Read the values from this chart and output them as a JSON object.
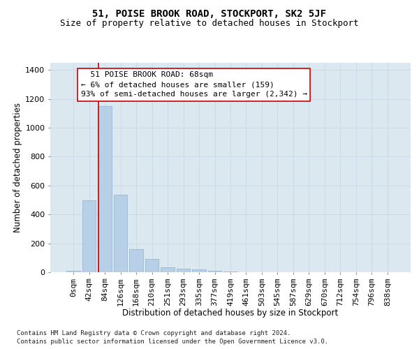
{
  "title": "51, POISE BROOK ROAD, STOCKPORT, SK2 5JF",
  "subtitle": "Size of property relative to detached houses in Stockport",
  "xlabel": "Distribution of detached houses by size in Stockport",
  "ylabel": "Number of detached properties",
  "footnote1": "Contains HM Land Registry data © Crown copyright and database right 2024.",
  "footnote2": "Contains public sector information licensed under the Open Government Licence v3.0.",
  "bar_labels": [
    "0sqm",
    "42sqm",
    "84sqm",
    "126sqm",
    "168sqm",
    "210sqm",
    "251sqm",
    "293sqm",
    "335sqm",
    "377sqm",
    "419sqm",
    "461sqm",
    "503sqm",
    "545sqm",
    "587sqm",
    "629sqm",
    "670sqm",
    "712sqm",
    "754sqm",
    "796sqm",
    "838sqm"
  ],
  "bar_values": [
    10,
    500,
    1150,
    535,
    160,
    90,
    35,
    25,
    20,
    10,
    5,
    0,
    0,
    0,
    0,
    0,
    0,
    0,
    0,
    0,
    0
  ],
  "bar_color": "#b8cfe8",
  "bar_edgecolor": "#8ab0d0",
  "red_line_x": 1.62,
  "red_line_color": "#cc0000",
  "annotation_text": "  51 POISE BROOK ROAD: 68sqm\n← 6% of detached houses are smaller (159)\n93% of semi-detached houses are larger (2,342) →",
  "ylim": [
    0,
    1450
  ],
  "yticks": [
    0,
    200,
    400,
    600,
    800,
    1000,
    1200,
    1400
  ],
  "grid_color": "#c8d8e8",
  "background_color": "#dce8f0",
  "title_fontsize": 10,
  "subtitle_fontsize": 9,
  "xlabel_fontsize": 8.5,
  "ylabel_fontsize": 8.5,
  "tick_fontsize": 8,
  "annotation_fontsize": 8
}
